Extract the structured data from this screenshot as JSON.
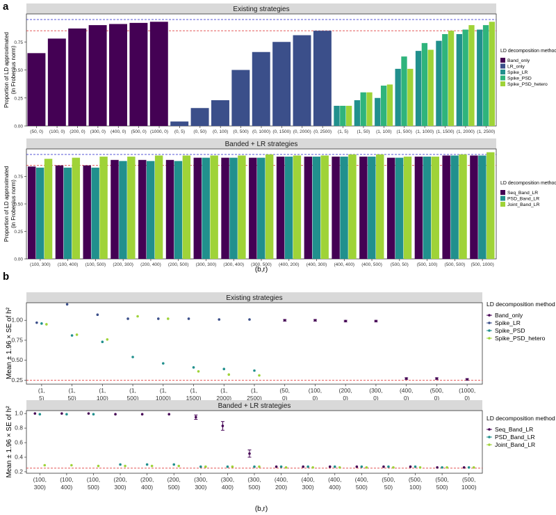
{
  "panel_labels": [
    "a",
    "b"
  ],
  "xlabel": "(b,r)",
  "chart_data": [
    {
      "panel": "a",
      "type": "bar",
      "strip": "Existing strategies",
      "ylabel": [
        "Proportion of LD approximated",
        "(in Frobenius norm)"
      ],
      "ylim": [
        0,
        1
      ],
      "yticks": [
        "0.00",
        "0.25",
        "0.50",
        "0.75"
      ],
      "hlines": [
        {
          "y": 0.95,
          "color": "#3f3fd0"
        },
        {
          "y": 0.85,
          "color": "#e04040"
        }
      ],
      "legend_title": "LD decomposition method",
      "legend": [
        {
          "name": "Band_only",
          "color": "#440154"
        },
        {
          "name": "LR_only",
          "color": "#3b4f8a"
        },
        {
          "name": "Spike_LR",
          "color": "#21908d"
        },
        {
          "name": "Spike_PSD",
          "color": "#2fb47c"
        },
        {
          "name": "Spike_PSD_hetero",
          "color": "#9fd338"
        }
      ],
      "categories": [
        "(50, 0)",
        "(100, 0)",
        "(200, 0)",
        "(300, 0)",
        "(400, 0)",
        "(500, 0)",
        "(1000, 0)",
        "(0, 5)",
        "(0, 50)",
        "(0, 100)",
        "(0, 500)",
        "(0, 1000)",
        "(0, 1500)",
        "(0, 2000)",
        "(0, 2500)",
        "(1, 5)",
        "(1, 50)",
        "(1, 100)",
        "(1, 500)",
        "(1, 1000)",
        "(1, 1500)",
        "(1, 2000)",
        "(1, 2500)"
      ],
      "series": [
        {
          "name": "Band_only",
          "values": [
            0.65,
            0.78,
            0.87,
            0.9,
            0.91,
            0.92,
            0.93,
            null,
            null,
            null,
            null,
            null,
            null,
            null,
            null,
            null,
            null,
            null,
            null,
            null,
            null,
            null,
            null
          ]
        },
        {
          "name": "LR_only",
          "values": [
            null,
            null,
            null,
            null,
            null,
            null,
            null,
            0.04,
            0.16,
            0.23,
            0.5,
            0.66,
            0.75,
            0.81,
            0.85,
            null,
            null,
            null,
            null,
            null,
            null,
            null,
            null
          ]
        },
        {
          "name": "Spike_LR",
          "values": [
            null,
            null,
            null,
            null,
            null,
            null,
            null,
            null,
            null,
            null,
            null,
            null,
            null,
            null,
            null,
            0.18,
            0.23,
            0.25,
            0.51,
            0.67,
            0.76,
            0.82,
            0.86
          ]
        },
        {
          "name": "Spike_PSD",
          "values": [
            null,
            null,
            null,
            null,
            null,
            null,
            null,
            null,
            null,
            null,
            null,
            null,
            null,
            null,
            null,
            0.18,
            0.3,
            0.36,
            0.62,
            0.74,
            0.82,
            0.86,
            0.9
          ]
        },
        {
          "name": "Spike_PSD_hetero",
          "values": [
            null,
            null,
            null,
            null,
            null,
            null,
            null,
            null,
            null,
            null,
            null,
            null,
            null,
            null,
            null,
            0.18,
            0.3,
            0.37,
            0.51,
            0.68,
            0.85,
            0.9,
            0.93
          ]
        }
      ]
    },
    {
      "panel": "a",
      "type": "bar",
      "strip": "Banded + LR strategies",
      "ylabel": [
        "Proportion of LD approximated",
        "(in Frobenius norm)"
      ],
      "ylim": [
        0,
        1
      ],
      "yticks": [
        "0.00",
        "0.25",
        "0.50",
        "0.75"
      ],
      "hlines": [
        {
          "y": 0.95,
          "color": "#3f3fd0"
        },
        {
          "y": 0.85,
          "color": "#e04040"
        }
      ],
      "legend_title": "LD decomposition method",
      "legend": [
        {
          "name": "Seq_Band_LR",
          "color": "#440154"
        },
        {
          "name": "PSD_Band_LR",
          "color": "#21908d"
        },
        {
          "name": "Joint_Band_LR",
          "color": "#9fd338"
        }
      ],
      "categories": [
        "(100, 300)",
        "(100, 400)",
        "(100, 500)",
        "(200, 300)",
        "(200, 400)",
        "(200, 500)",
        "(300, 300)",
        "(300, 400)",
        "(300, 500)",
        "(400, 200)",
        "(400, 300)",
        "(400, 400)",
        "(400, 500)",
        "(500, 50)",
        "(500, 100)",
        "(500, 500)",
        "(500, 1000)"
      ],
      "series": [
        {
          "name": "Seq_Band_LR",
          "values": [
            0.84,
            0.85,
            0.85,
            0.9,
            0.9,
            0.9,
            0.92,
            0.92,
            0.92,
            0.93,
            0.93,
            0.93,
            0.93,
            0.92,
            0.93,
            0.94,
            0.94
          ]
        },
        {
          "name": "PSD_Band_LR",
          "values": [
            0.83,
            0.83,
            0.83,
            0.89,
            0.89,
            0.89,
            0.92,
            0.92,
            0.92,
            0.93,
            0.93,
            0.93,
            0.93,
            0.92,
            0.93,
            0.94,
            0.94
          ]
        },
        {
          "name": "Joint_Band_LR",
          "values": [
            0.91,
            0.92,
            0.93,
            0.93,
            0.94,
            0.94,
            0.94,
            0.94,
            0.95,
            0.94,
            0.94,
            0.95,
            0.95,
            0.93,
            0.93,
            0.95,
            0.97
          ]
        }
      ]
    },
    {
      "panel": "b",
      "type": "scatter",
      "strip": "Existing strategies",
      "ylabel": "Mean ± 1.96 × SE of  h²",
      "ylim": [
        0.2,
        1.22
      ],
      "yticks": [
        "0.25",
        "0.50",
        "0.75",
        "1.00"
      ],
      "hline": {
        "y": 0.25,
        "color": "#e04040"
      },
      "legend_title": "LD decomposition method",
      "legend": [
        {
          "name": "Band_only",
          "color": "#440154"
        },
        {
          "name": "Spike_LR",
          "color": "#3b4f8a"
        },
        {
          "name": "Spike_PSD",
          "color": "#21908d"
        },
        {
          "name": "Spike_PSD_hetero",
          "color": "#9fd338"
        }
      ],
      "categories": [
        [
          "(1,",
          "5)"
        ],
        [
          "(1,",
          "50)"
        ],
        [
          "(1,",
          "100)"
        ],
        [
          "(1,",
          "500)"
        ],
        [
          "(1,",
          "1000)"
        ],
        [
          "(1,",
          "1500)"
        ],
        [
          "(1,",
          "2000)"
        ],
        [
          "(1,",
          "2500)"
        ],
        [
          "(50,",
          "0)"
        ],
        [
          "(100,",
          "0)"
        ],
        [
          "(200,",
          "0)"
        ],
        [
          "(300,",
          "0)"
        ],
        [
          "(400,",
          "0)"
        ],
        [
          "(500,",
          "0)"
        ],
        [
          "(1000,",
          "0)"
        ]
      ],
      "series": [
        {
          "name": "Band_only",
          "values": [
            null,
            null,
            null,
            null,
            null,
            null,
            null,
            null,
            1.0,
            1.0,
            0.99,
            0.99,
            0.27,
            0.27,
            0.26
          ],
          "err": [
            null,
            null,
            null,
            null,
            null,
            null,
            null,
            null,
            0.01,
            0.01,
            0.01,
            0.01,
            0.01,
            0.01,
            0.01
          ]
        },
        {
          "name": "Spike_LR",
          "values": [
            0.97,
            1.2,
            1.07,
            1.02,
            1.02,
            1.02,
            1.01,
            1.01,
            null,
            null,
            null,
            null,
            null,
            null,
            null
          ]
        },
        {
          "name": "Spike_PSD",
          "values": [
            0.96,
            0.81,
            0.73,
            0.54,
            0.46,
            0.41,
            0.39,
            0.37,
            null,
            null,
            null,
            null,
            null,
            null,
            null
          ]
        },
        {
          "name": "Spike_PSD_hetero",
          "values": [
            0.95,
            0.82,
            0.76,
            1.05,
            1.02,
            0.36,
            0.32,
            0.31,
            null,
            null,
            null,
            null,
            null,
            null,
            null
          ]
        }
      ]
    },
    {
      "panel": "b",
      "type": "scatter",
      "strip": "Banded + LR strategies",
      "ylabel": "Mean ± 1.96 × SE of  h²",
      "ylim": [
        0.18,
        1.04
      ],
      "yticks": [
        "0.2",
        "0.4",
        "0.6",
        "0.8",
        "1.0"
      ],
      "hline": {
        "y": 0.25,
        "color": "#e04040"
      },
      "legend_title": "LD decomposition method",
      "legend": [
        {
          "name": "Seq_Band_LR",
          "color": "#440154"
        },
        {
          "name": "PSD_Band_LR",
          "color": "#21908d"
        },
        {
          "name": "Joint_Band_LR",
          "color": "#9fd338"
        }
      ],
      "categories": [
        [
          "(100,",
          "300)"
        ],
        [
          "(100,",
          "400)"
        ],
        [
          "(100,",
          "500)"
        ],
        [
          "(200,",
          "300)"
        ],
        [
          "(200,",
          "400)"
        ],
        [
          "(200,",
          "500)"
        ],
        [
          "(300,",
          "300)"
        ],
        [
          "(300,",
          "400)"
        ],
        [
          "(300,",
          "500)"
        ],
        [
          "(400,",
          "200)"
        ],
        [
          "(400,",
          "300)"
        ],
        [
          "(400,",
          "400)"
        ],
        [
          "(400,",
          "500)"
        ],
        [
          "(500,",
          "50)"
        ],
        [
          "(500,",
          "100)"
        ],
        [
          "(500,",
          "500)"
        ],
        [
          "(500,",
          "1000)"
        ]
      ],
      "series": [
        {
          "name": "Seq_Band_LR",
          "values": [
            1.0,
            1.0,
            1.0,
            0.99,
            0.99,
            0.99,
            0.95,
            0.83,
            0.45,
            0.27,
            0.27,
            0.27,
            0.27,
            0.27,
            0.27,
            0.26,
            0.26
          ],
          "err": [
            0.0,
            0.0,
            0.0,
            0.0,
            0.0,
            0.0,
            0.03,
            0.06,
            0.05,
            0.0,
            0.0,
            0.0,
            0.0,
            0.0,
            0.0,
            0.0,
            0.0
          ]
        },
        {
          "name": "PSD_Band_LR",
          "values": [
            0.99,
            0.99,
            0.99,
            0.3,
            0.3,
            0.3,
            0.27,
            0.27,
            0.27,
            0.27,
            0.27,
            0.27,
            0.27,
            0.27,
            0.27,
            0.26,
            0.26
          ]
        },
        {
          "name": "Joint_Band_LR",
          "values": [
            0.29,
            0.29,
            0.28,
            0.28,
            0.28,
            0.28,
            0.27,
            0.27,
            0.27,
            0.26,
            0.26,
            0.26,
            0.26,
            0.26,
            0.26,
            0.26,
            0.26
          ]
        }
      ]
    }
  ]
}
